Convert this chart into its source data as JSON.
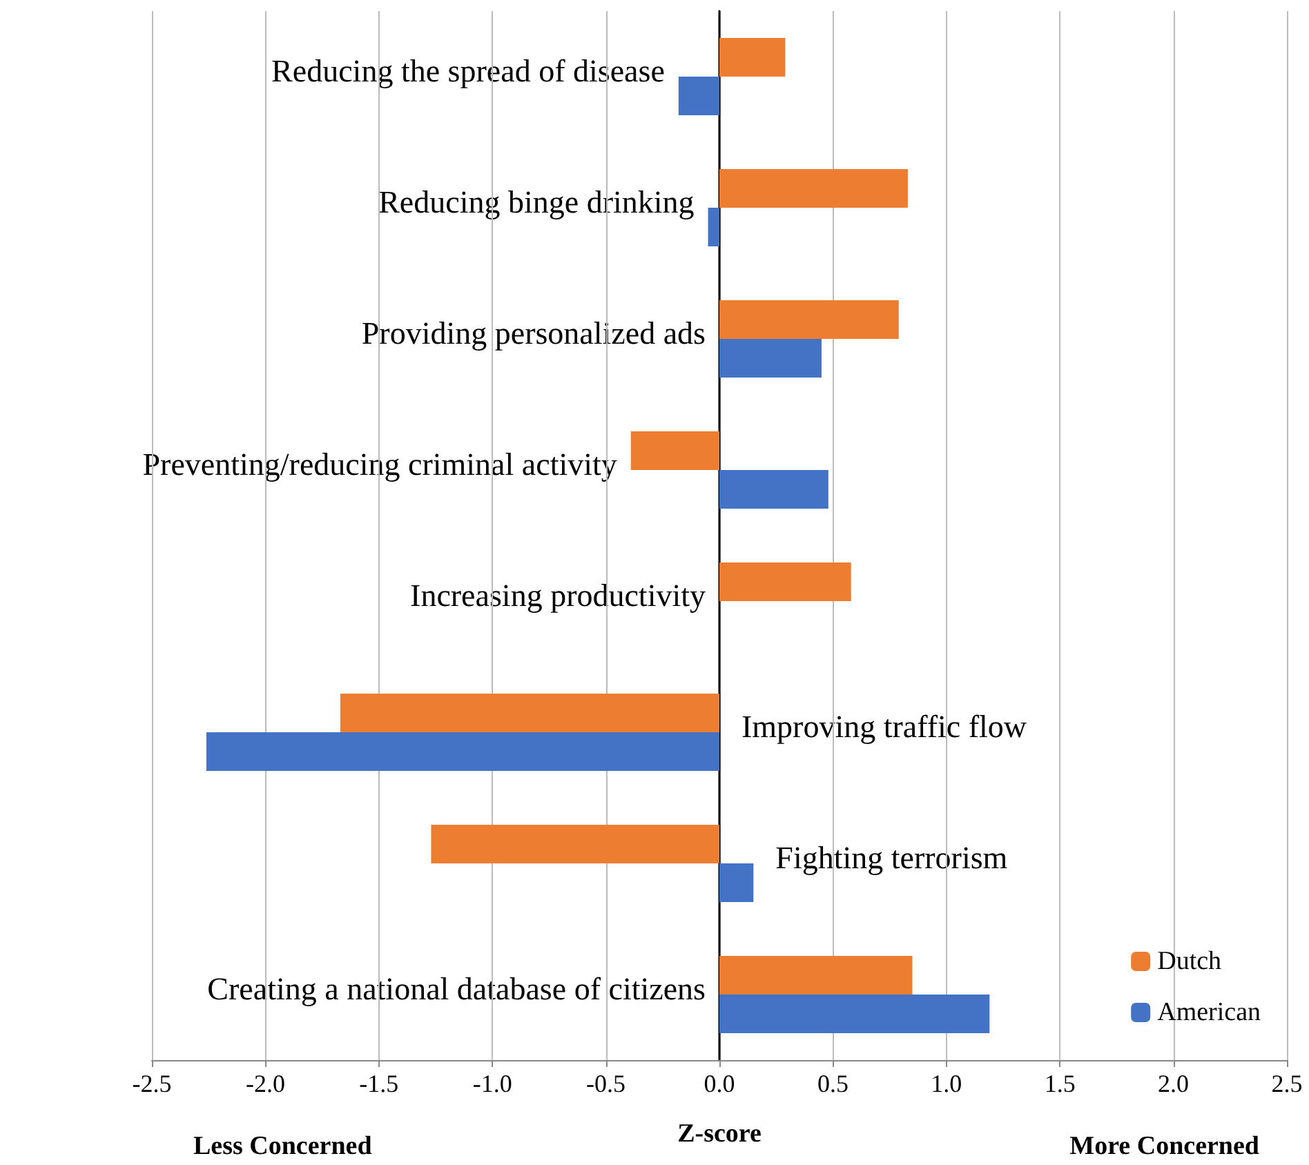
{
  "chart_data": {
    "type": "bar",
    "orientation": "horizontal",
    "categories": [
      "Reducing the spread of disease",
      "Reducing binge drinking",
      "Providing personalized ads",
      "Preventing/reducing criminal activity",
      "Increasing productivity",
      "Improving traffic flow",
      "Fighting terrorism",
      "Creating a national database of citizens"
    ],
    "series": [
      {
        "name": "Dutch",
        "color": "#ed7d31",
        "values": [
          0.29,
          0.83,
          0.79,
          -0.39,
          0.58,
          -1.67,
          -1.27,
          0.85
        ]
      },
      {
        "name": "American",
        "color": "#4472c4",
        "values": [
          -0.18,
          -0.05,
          0.45,
          0.48,
          0,
          -2.26,
          0.15,
          1.19
        ]
      }
    ],
    "xlabel": "Z-score",
    "annotations": [
      "Less Concerned",
      "More Concerned"
    ],
    "xlim": [
      -2.5,
      2.5
    ],
    "xticks": [
      {
        "value": -2.5,
        "label": "-2.5"
      },
      {
        "value": -2,
        "label": "-2.0"
      },
      {
        "value": -1.5,
        "label": "-1.5"
      },
      {
        "value": -1,
        "label": "-1.0"
      },
      {
        "value": -0.5,
        "label": "-0.5"
      },
      {
        "value": 0,
        "label": "0.0"
      },
      {
        "value": 0.5,
        "label": "0.5"
      },
      {
        "value": 1,
        "label": "1.0"
      },
      {
        "value": 1.5,
        "label": "1.5"
      },
      {
        "value": 2,
        "label": "2.0"
      },
      {
        "value": 2.5,
        "label": "2.5"
      }
    ],
    "grid": "x",
    "legend": "bottom right"
  }
}
